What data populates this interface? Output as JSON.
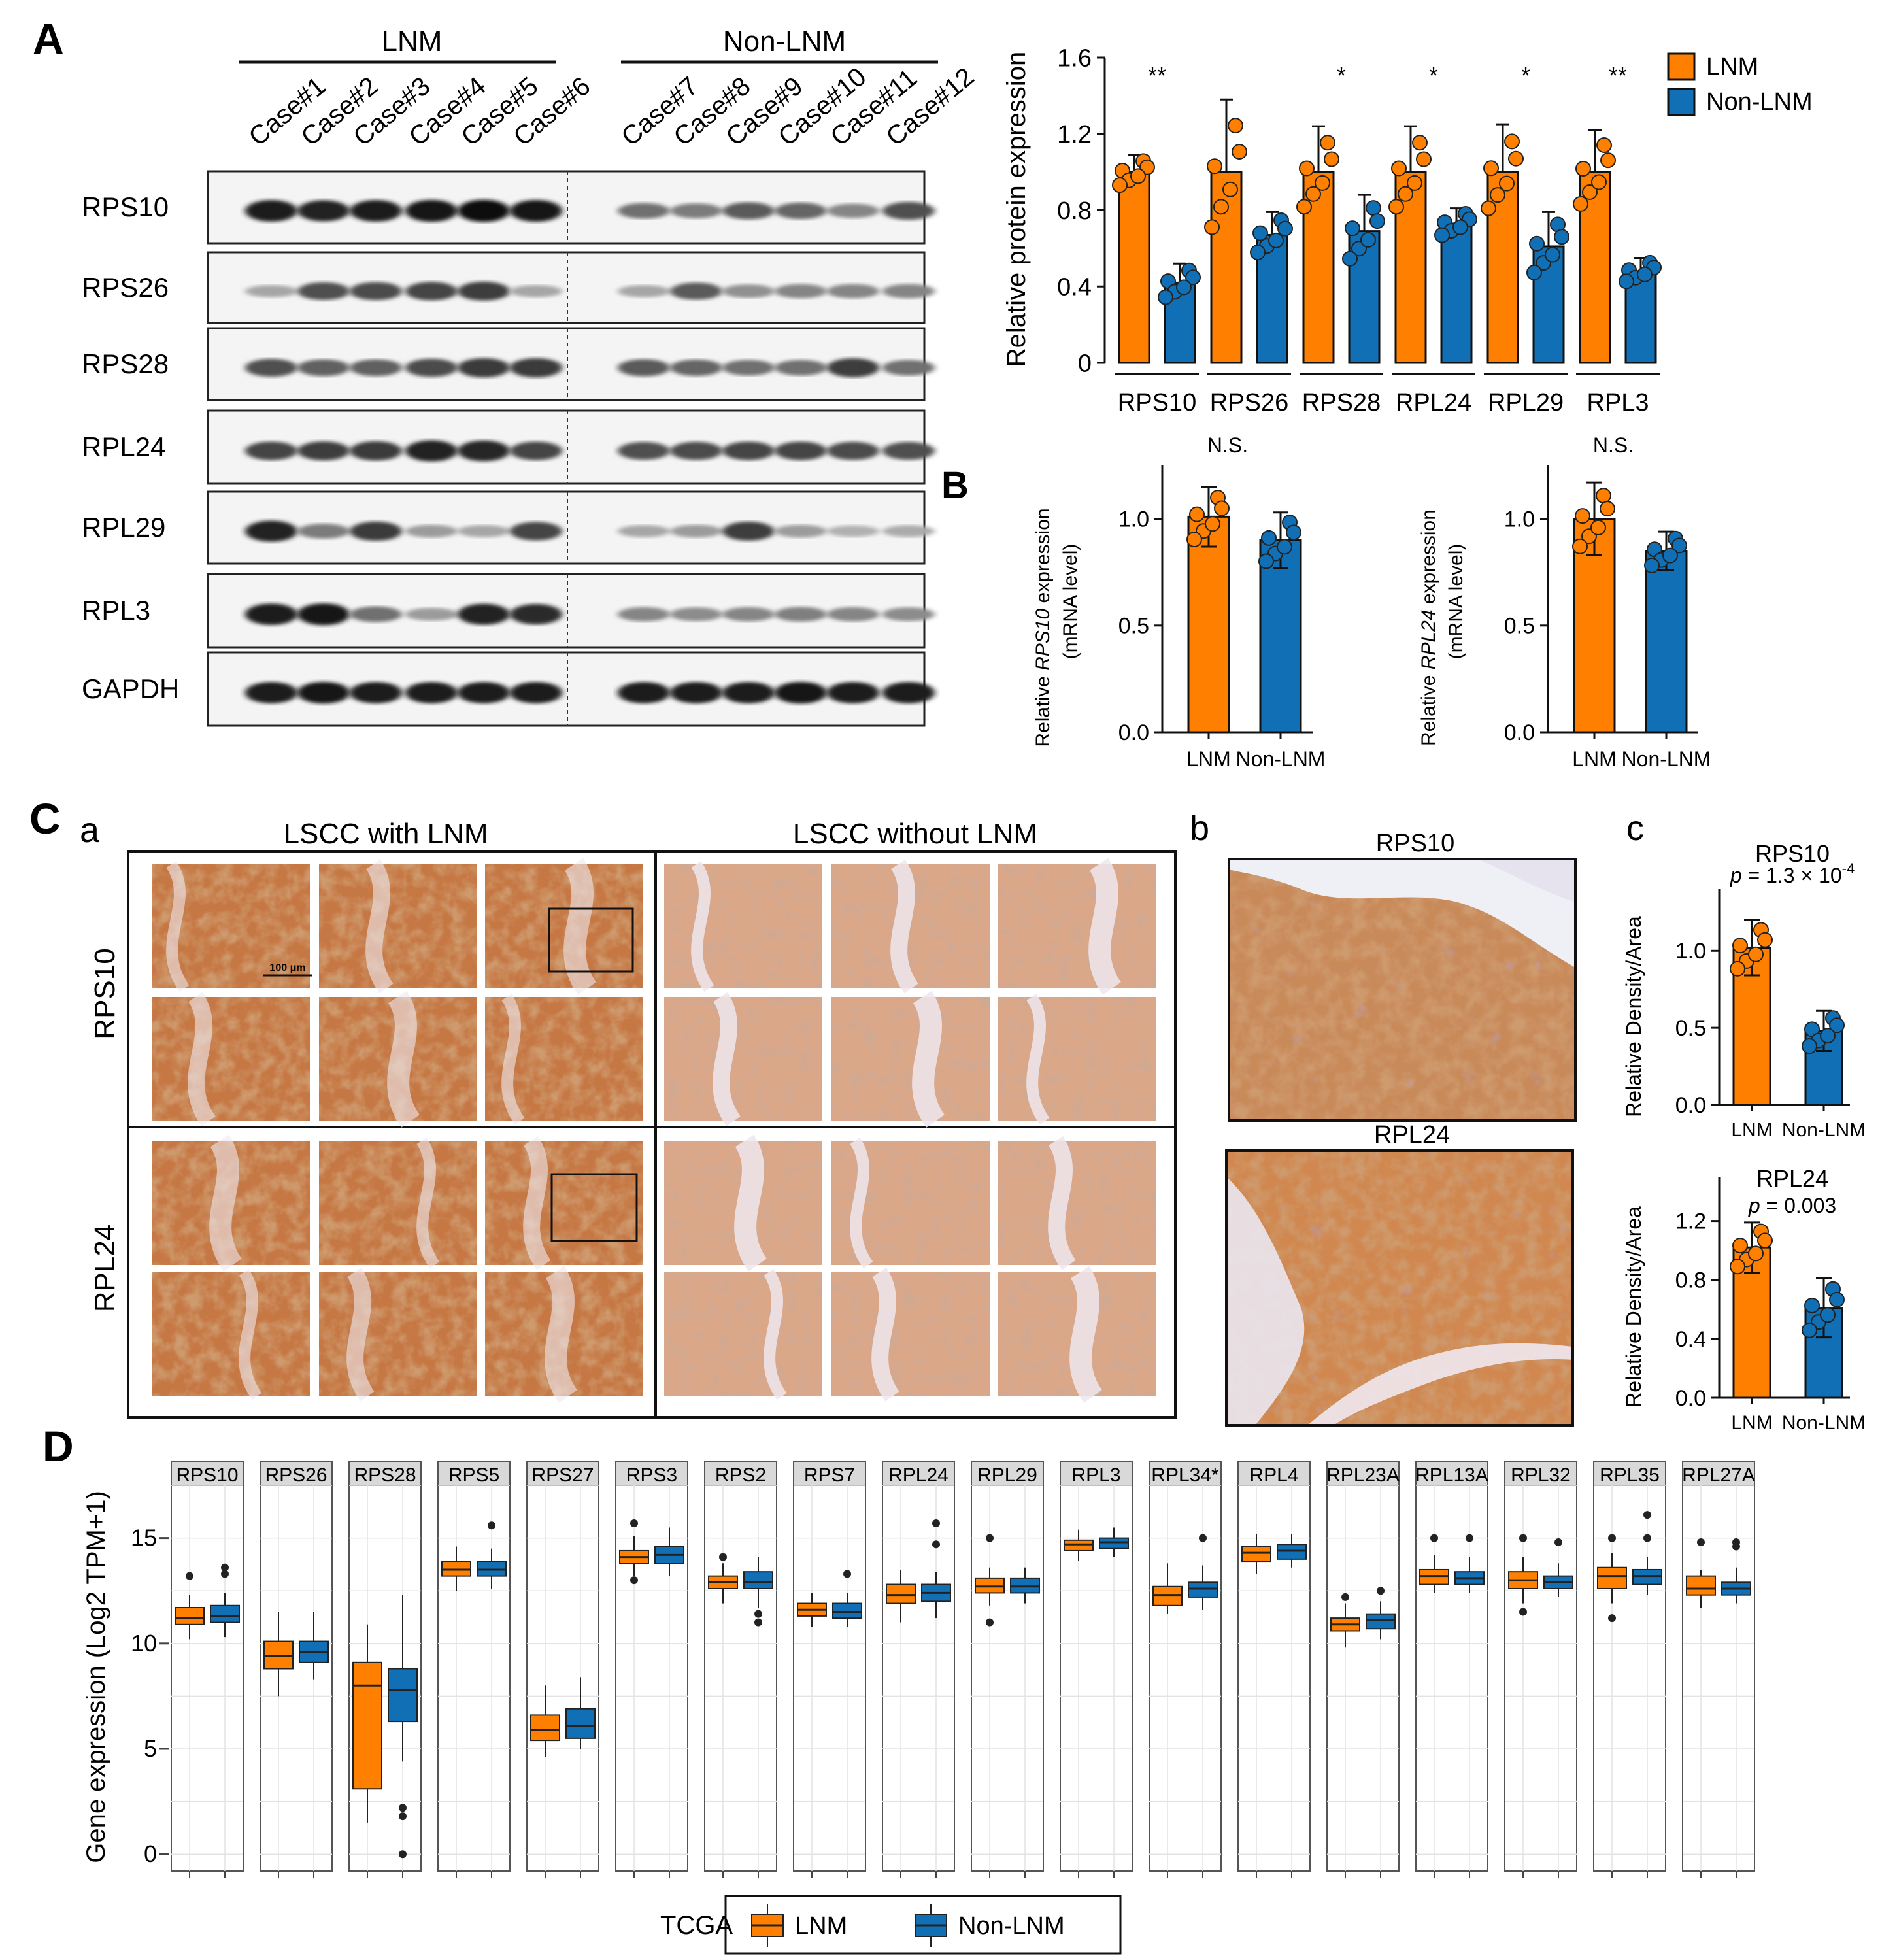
{
  "panels": {
    "A": "A",
    "B": "B",
    "C": "C",
    "D": "D",
    "Ca": "a",
    "Cb": "b",
    "Cc": "c"
  },
  "colors": {
    "lnm": "#ff8000",
    "nonlnm": "#1170b5",
    "axis": "#111111"
  },
  "wb": {
    "groups": [
      "LNM",
      "Non-LNM"
    ],
    "cases": [
      "Case#1",
      "Case#2",
      "Case#3",
      "Case#4",
      "Case#5",
      "Case#6",
      "Case#7",
      "Case#8",
      "Case#9",
      "Case#10",
      "Case#11",
      "Case#12"
    ],
    "proteins": [
      "RPS10",
      "RPS26",
      "RPS28",
      "RPL24",
      "RPL29",
      "RPL3",
      "GAPDH"
    ],
    "band_intensity": [
      [
        0.95,
        0.92,
        0.95,
        0.98,
        1.0,
        0.97,
        0.55,
        0.5,
        0.65,
        0.6,
        0.45,
        0.7
      ],
      [
        0.3,
        0.7,
        0.72,
        0.75,
        0.78,
        0.3,
        0.3,
        0.65,
        0.4,
        0.45,
        0.45,
        0.45
      ],
      [
        0.7,
        0.62,
        0.62,
        0.72,
        0.8,
        0.8,
        0.65,
        0.6,
        0.55,
        0.55,
        0.78,
        0.55
      ],
      [
        0.75,
        0.78,
        0.8,
        0.92,
        0.9,
        0.75,
        0.7,
        0.72,
        0.75,
        0.75,
        0.72,
        0.7
      ],
      [
        0.92,
        0.5,
        0.8,
        0.35,
        0.3,
        0.75,
        0.3,
        0.35,
        0.78,
        0.35,
        0.25,
        0.28
      ],
      [
        0.95,
        0.98,
        0.55,
        0.35,
        0.92,
        0.88,
        0.45,
        0.42,
        0.45,
        0.48,
        0.45,
        0.42
      ],
      [
        0.95,
        0.98,
        0.95,
        0.95,
        0.95,
        0.95,
        0.95,
        0.95,
        0.95,
        0.98,
        0.95,
        0.95
      ]
    ]
  },
  "chart_data": [
    {
      "type": "bar",
      "panel": "A",
      "categories": [
        "RPS10",
        "RPS26",
        "RPS28",
        "RPL24",
        "RPL29",
        "RPL3"
      ],
      "ylabel": "Relative protein expression",
      "ylim": [
        0,
        1.6
      ],
      "yticks": [
        "0",
        "0.4",
        "0.8",
        "1.2",
        "1.6"
      ],
      "legend": {
        "position": "top-right",
        "entries": [
          "LNM",
          "Non-LNM"
        ]
      },
      "significance": [
        "**",
        "",
        "*",
        "*",
        "*",
        "**"
      ],
      "series": [
        {
          "name": "LNM",
          "values": [
            1.0,
            1.0,
            1.0,
            1.0,
            1.0,
            1.0
          ],
          "err": [
            0.09,
            0.38,
            0.24,
            0.24,
            0.25,
            0.22
          ]
        },
        {
          "name": "Non-LNM",
          "values": [
            0.42,
            0.67,
            0.69,
            0.73,
            0.61,
            0.48
          ],
          "err": [
            0.1,
            0.12,
            0.19,
            0.08,
            0.18,
            0.07
          ]
        }
      ]
    },
    {
      "type": "bar",
      "panel": "B-left",
      "categories": [
        "LNM",
        "Non-LNM"
      ],
      "ylabel_prefix": "Relative",
      "ylabel_gene": "RPS10",
      "ylabel_suffix": "expression",
      "ylabel2": "(mRNA  level)",
      "ylim": [
        0,
        1.25
      ],
      "yticks": [
        "0.0",
        "0.5",
        "1.0"
      ],
      "annotation": "N.S.",
      "values": [
        1.01,
        0.9
      ],
      "err": [
        0.14,
        0.13
      ]
    },
    {
      "type": "bar",
      "panel": "B-right",
      "categories": [
        "LNM",
        "Non-LNM"
      ],
      "ylabel_prefix": "Relative",
      "ylabel_gene": "RPL24",
      "ylabel_suffix": "expression",
      "ylabel2": "(mRNA  level)",
      "ylim": [
        0,
        1.25
      ],
      "yticks": [
        "0.0",
        "0.5",
        "1.0"
      ],
      "annotation": "N.S.",
      "values": [
        1.0,
        0.85
      ],
      "err": [
        0.17,
        0.09
      ]
    },
    {
      "type": "bar",
      "panel": "Cc-top",
      "title": "RPS10",
      "pvalue_prefix": "p",
      "pvalue_text": " = 1.3 × 10",
      "pvalue_exp": "-4",
      "categories": [
        "LNM",
        "Non-LNM"
      ],
      "ylabel": "Relative Density/Area",
      "ylim": [
        0,
        1.4
      ],
      "yticks": [
        "0.0",
        "0.5",
        "1.0"
      ],
      "values": [
        1.02,
        0.48
      ],
      "err": [
        0.18,
        0.13
      ]
    },
    {
      "type": "bar",
      "panel": "Cc-bottom",
      "title": "RPL24",
      "pvalue_prefix": "p",
      "pvalue_text": " = 0.003",
      "categories": [
        "LNM",
        "Non-LNM"
      ],
      "ylabel": "Relative Density/Area",
      "ylim": [
        0,
        1.5
      ],
      "yticks": [
        "0.0",
        "0.4",
        "0.8",
        "1.2"
      ],
      "values": [
        1.02,
        0.61
      ],
      "err": [
        0.17,
        0.2
      ]
    },
    {
      "type": "box",
      "panel": "D",
      "ylabel": "Gene expression (Log2 TPM+1)",
      "ylim": [
        -0.8,
        17.5
      ],
      "yticks": [
        "0",
        "5",
        "10",
        "15"
      ],
      "legend": {
        "title": "TCGA",
        "entries": [
          "LNM",
          "Non-LNM"
        ],
        "position": "bottom"
      },
      "genes": [
        "RPS10",
        "RPS26",
        "RPS28",
        "RPS5",
        "RPS27",
        "RPS3",
        "RPS2",
        "RPS7",
        "RPL24",
        "RPL29",
        "RPL3",
        "RPL34*",
        "RPL4",
        "RPL23A",
        "RPL13A",
        "RPL32",
        "RPL35",
        "RPL27A"
      ],
      "LNM": [
        {
          "min": 10.2,
          "q1": 10.9,
          "med": 11.2,
          "q3": 11.7,
          "max": 12.3,
          "out": [
            13.2
          ]
        },
        {
          "min": 7.5,
          "q1": 8.8,
          "med": 9.4,
          "q3": 10.1,
          "max": 11.5,
          "out": []
        },
        {
          "min": 1.5,
          "q1": 3.1,
          "med": 8.0,
          "q3": 9.1,
          "max": 10.9,
          "out": []
        },
        {
          "min": 12.5,
          "q1": 13.2,
          "med": 13.5,
          "q3": 13.9,
          "max": 14.6,
          "out": []
        },
        {
          "min": 4.6,
          "q1": 5.4,
          "med": 5.9,
          "q3": 6.6,
          "max": 8.0,
          "out": []
        },
        {
          "min": 13.2,
          "q1": 13.8,
          "med": 14.1,
          "q3": 14.4,
          "max": 15.1,
          "out": [
            15.7,
            13.0
          ]
        },
        {
          "min": 11.9,
          "q1": 12.6,
          "med": 12.9,
          "q3": 13.2,
          "max": 13.8,
          "out": [
            14.1
          ]
        },
        {
          "min": 10.8,
          "q1": 11.3,
          "med": 11.6,
          "q3": 11.9,
          "max": 12.4,
          "out": []
        },
        {
          "min": 11.0,
          "q1": 11.9,
          "med": 12.3,
          "q3": 12.8,
          "max": 13.5,
          "out": []
        },
        {
          "min": 11.8,
          "q1": 12.4,
          "med": 12.7,
          "q3": 13.1,
          "max": 13.6,
          "out": [
            15.0,
            11.0
          ]
        },
        {
          "min": 13.9,
          "q1": 14.4,
          "med": 14.7,
          "q3": 14.9,
          "max": 15.4,
          "out": []
        },
        {
          "min": 11.4,
          "q1": 11.8,
          "med": 12.3,
          "q3": 12.7,
          "max": 13.8,
          "out": []
        },
        {
          "min": 13.3,
          "q1": 13.9,
          "med": 14.3,
          "q3": 14.6,
          "max": 15.2,
          "out": []
        },
        {
          "min": 9.8,
          "q1": 10.6,
          "med": 10.9,
          "q3": 11.2,
          "max": 11.9,
          "out": [
            12.2
          ]
        },
        {
          "min": 12.4,
          "q1": 12.8,
          "med": 13.2,
          "q3": 13.5,
          "max": 14.2,
          "out": [
            15.0
          ]
        },
        {
          "min": 11.9,
          "q1": 12.6,
          "med": 13.0,
          "q3": 13.4,
          "max": 14.1,
          "out": [
            15.0,
            11.5
          ]
        },
        {
          "min": 11.9,
          "q1": 12.6,
          "med": 13.2,
          "q3": 13.6,
          "max": 14.3,
          "out": [
            15.0,
            11.2
          ]
        },
        {
          "min": 11.7,
          "q1": 12.3,
          "med": 12.6,
          "q3": 13.2,
          "max": 13.5,
          "out": [
            14.8
          ]
        }
      ],
      "Non-LNM": [
        {
          "min": 10.3,
          "q1": 11.0,
          "med": 11.3,
          "q3": 11.8,
          "max": 12.4,
          "out": [
            13.6,
            13.3
          ]
        },
        {
          "min": 8.3,
          "q1": 9.1,
          "med": 9.6,
          "q3": 10.1,
          "max": 11.5,
          "out": []
        },
        {
          "min": 4.4,
          "q1": 6.3,
          "med": 7.8,
          "q3": 8.8,
          "max": 12.3,
          "out": [
            2.2,
            1.8,
            0.0
          ]
        },
        {
          "min": 12.6,
          "q1": 13.2,
          "med": 13.5,
          "q3": 13.9,
          "max": 14.5,
          "out": [
            15.6
          ]
        },
        {
          "min": 5.0,
          "q1": 5.5,
          "med": 6.1,
          "q3": 6.9,
          "max": 8.4,
          "out": []
        },
        {
          "min": 13.2,
          "q1": 13.8,
          "med": 14.2,
          "q3": 14.6,
          "max": 15.5,
          "out": []
        },
        {
          "min": 11.7,
          "q1": 12.6,
          "med": 12.9,
          "q3": 13.4,
          "max": 14.1,
          "out": [
            11.4,
            11.0
          ]
        },
        {
          "min": 10.8,
          "q1": 11.2,
          "med": 11.5,
          "q3": 11.9,
          "max": 12.4,
          "out": [
            13.3
          ]
        },
        {
          "min": 11.2,
          "q1": 12.0,
          "med": 12.4,
          "q3": 12.8,
          "max": 13.4,
          "out": [
            14.7,
            15.7
          ]
        },
        {
          "min": 11.9,
          "q1": 12.4,
          "med": 12.7,
          "q3": 13.1,
          "max": 13.6,
          "out": []
        },
        {
          "min": 14.1,
          "q1": 14.5,
          "med": 14.8,
          "q3": 15.0,
          "max": 15.5,
          "out": []
        },
        {
          "min": 11.6,
          "q1": 12.2,
          "med": 12.6,
          "q3": 12.9,
          "max": 13.7,
          "out": [
            15.0
          ]
        },
        {
          "min": 13.6,
          "q1": 14.0,
          "med": 14.4,
          "q3": 14.7,
          "max": 15.2,
          "out": []
        },
        {
          "min": 10.2,
          "q1": 10.7,
          "med": 11.1,
          "q3": 11.4,
          "max": 12.0,
          "out": [
            12.5
          ]
        },
        {
          "min": 12.4,
          "q1": 12.8,
          "med": 13.1,
          "q3": 13.4,
          "max": 14.1,
          "out": [
            15.0
          ]
        },
        {
          "min": 12.2,
          "q1": 12.6,
          "med": 12.9,
          "q3": 13.2,
          "max": 13.8,
          "out": [
            14.8
          ]
        },
        {
          "min": 12.3,
          "q1": 12.8,
          "med": 13.2,
          "q3": 13.5,
          "max": 14.1,
          "out": [
            15.0,
            16.1
          ]
        },
        {
          "min": 11.9,
          "q1": 12.3,
          "med": 12.6,
          "q3": 12.9,
          "max": 13.6,
          "out": [
            14.8,
            14.6
          ]
        }
      ]
    }
  ],
  "ihc": {
    "title_left": "LSCC with LNM",
    "title_right": "LSCC without  LNM",
    "row_labels": [
      "RPS10",
      "RPL24"
    ],
    "scale_bar": "100 μm",
    "zoom_titles": [
      "RPS10",
      "RPL24"
    ]
  }
}
